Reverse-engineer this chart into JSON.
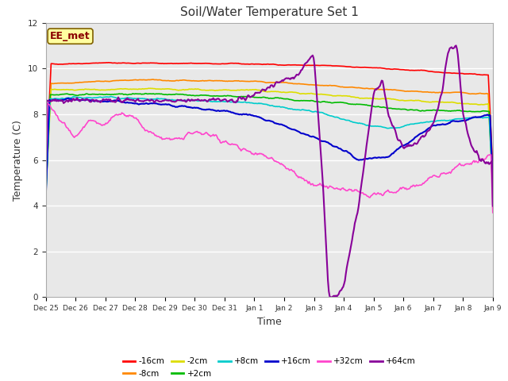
{
  "title": "Soil/Water Temperature Set 1",
  "xlabel": "Time",
  "ylabel": "Temperature (C)",
  "ylim": [
    0,
    12
  ],
  "xlim": [
    0,
    15
  ],
  "background_color": "#d8d8d8",
  "plot_bg": "#e8e8e8",
  "annotation_text": "EE_met",
  "annotation_bg": "#ffffa0",
  "annotation_border": "#806000",
  "series_colors": {
    "-16cm": "#ff0000",
    "-8cm": "#ff8800",
    "-2cm": "#dddd00",
    "+2cm": "#00bb00",
    "+8cm": "#00cccc",
    "+16cm": "#0000cc",
    "+32cm": "#ff44cc",
    "+64cm": "#880099"
  },
  "tick_labels": [
    "Dec 25",
    "Dec 26",
    "Dec 27",
    "Dec 28",
    "Dec 29",
    "Dec 30",
    "Dec 31",
    "Jan 1",
    "Jan 2",
    "Jan 3",
    "Jan 4",
    "Jan 5",
    "Jan 6",
    "Jan 7",
    "Jan 8",
    "Jan 9"
  ],
  "yticks": [
    0,
    2,
    4,
    6,
    8,
    10,
    12
  ],
  "n_points": 500
}
